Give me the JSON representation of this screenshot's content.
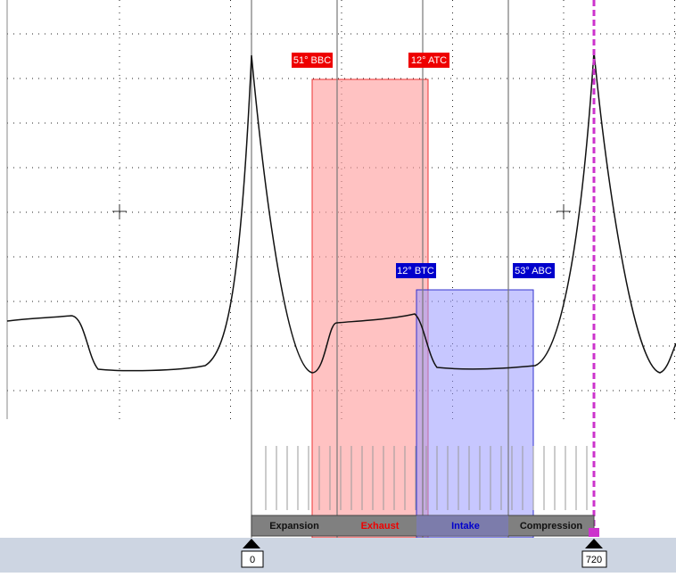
{
  "timing_labels": [
    "51° BBC",
    "12° ATC",
    "12° BTC",
    "53° ABC"
  ],
  "phases": [
    "Expansion",
    "Exhaust",
    "Intake",
    "Compression"
  ],
  "markers": [
    "0",
    "720"
  ]
}
